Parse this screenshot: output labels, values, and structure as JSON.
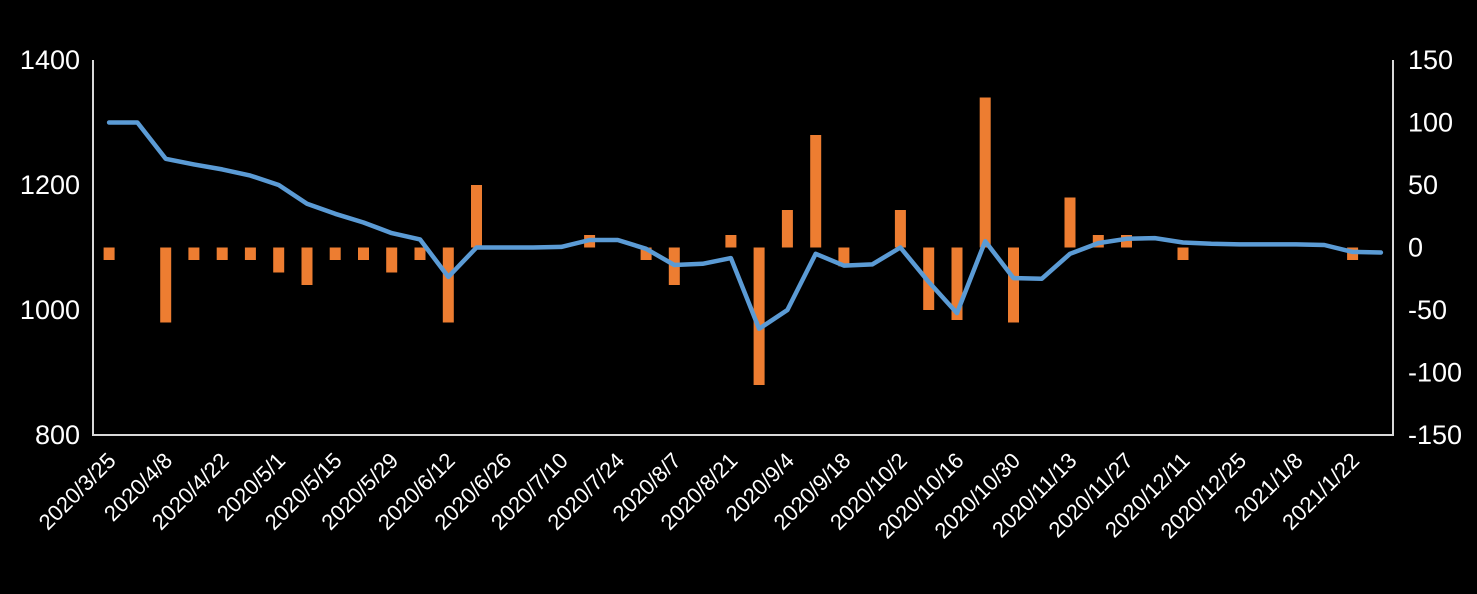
{
  "chart_data": {
    "type": "combo",
    "title": "",
    "background_color": "#000000",
    "text_color": "#FFFFFF",
    "axis_line_color": "#D9D9D9",
    "grid": false,
    "legend": "none",
    "x_point_count": 46,
    "x_tick_every": 2,
    "x_tick_labels": [
      "2020/3/25",
      "2020/4/8",
      "2020/4/22",
      "2020/5/1",
      "2020/5/15",
      "2020/5/29",
      "2020/6/12",
      "2020/6/26",
      "2020/7/10",
      "2020/7/24",
      "2020/8/7",
      "2020/8/21",
      "2020/9/4",
      "2020/9/18",
      "2020/10/2",
      "2020/10/16",
      "2020/10/30",
      "2020/11/13",
      "2020/11/27",
      "2020/12/11",
      "2020/12/25",
      "2021/1/8",
      "2021/1/22"
    ],
    "left_axis": {
      "min": 800,
      "max": 1400,
      "ticks": [
        1400,
        1200,
        1000,
        800
      ]
    },
    "right_axis": {
      "min": -150,
      "max": 150,
      "ticks": [
        150,
        100,
        50,
        0,
        -50,
        -100,
        -150
      ]
    },
    "series": [
      {
        "name": "price-line",
        "type": "line",
        "axis": "left",
        "color": "#5B9BD5",
        "values": [
          1300,
          1300,
          1242,
          1233,
          1225,
          1215,
          1200,
          1170,
          1154,
          1140,
          1123,
          1113,
          1053,
          1100,
          1100,
          1100,
          1101,
          1112,
          1112,
          1098,
          1072,
          1074,
          1083,
          970,
          1000,
          1090,
          1071,
          1073,
          1100,
          1045,
          995,
          1110,
          1051,
          1050,
          1090,
          1107,
          1114,
          1115,
          1108,
          1106,
          1105,
          1105,
          1105,
          1104,
          1093,
          1092
        ]
      },
      {
        "name": "change-bars",
        "type": "bar",
        "axis": "right",
        "color": "#ED7D31",
        "values": [
          -10,
          0,
          -60,
          -10,
          -10,
          -10,
          -20,
          -30,
          -10,
          -10,
          -20,
          -10,
          -60,
          50,
          0,
          0,
          0,
          10,
          0,
          -10,
          -30,
          0,
          10,
          -110,
          30,
          90,
          -15,
          0,
          30,
          -50,
          -58,
          120,
          -60,
          0,
          40,
          10,
          10,
          0,
          -10,
          0,
          0,
          0,
          0,
          0,
          -10,
          0
        ]
      }
    ]
  }
}
